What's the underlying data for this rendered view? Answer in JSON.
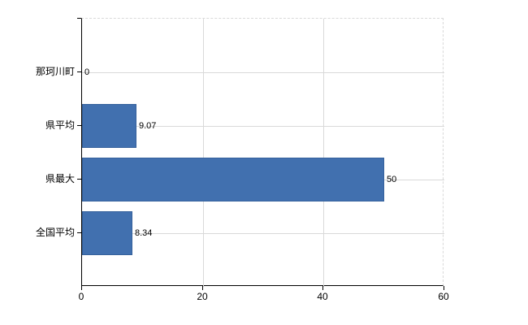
{
  "chart_data": {
    "type": "bar",
    "orientation": "horizontal",
    "title": "",
    "categories": [
      "那珂川町",
      "県平均",
      "県最大",
      "全国平均"
    ],
    "values": [
      0,
      9.07,
      50,
      8.34
    ],
    "value_labels": [
      "0",
      "9.07",
      "50",
      "8.34"
    ],
    "xlabel": "",
    "ylabel": "",
    "xlim": [
      0,
      60
    ],
    "x_ticks": [
      0,
      20,
      40,
      60
    ],
    "x_tick_labels": [
      "0",
      "20",
      "40",
      "60"
    ],
    "grid": true,
    "legend": false,
    "colors": {
      "bar_fill": "#4170af",
      "bar_border": "#35619c",
      "grid_line": "#d9d9d9",
      "axis_line": "#000000",
      "label_text": "#000000",
      "background": "#ffffff"
    }
  }
}
